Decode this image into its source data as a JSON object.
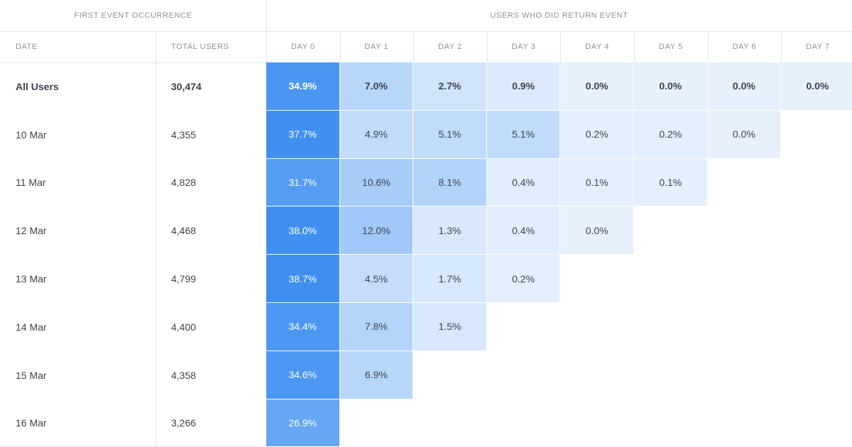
{
  "header": {
    "first_event": "FIRST EVENT OCCURRENCE",
    "return_event": "USERS WHO DID RETURN EVENT",
    "date_col": "DATE",
    "total_col": "TOTAL USERS"
  },
  "colors": {
    "day0_strong": "#3d8ef0",
    "light_base": "#e6f1fd",
    "text_dark": "#3d4150",
    "header_text": "#8a8f9c",
    "grid": "#e4e6ea"
  },
  "chart_data": {
    "type": "heatmap",
    "title": "",
    "columns": [
      "DAY 0",
      "DAY 1",
      "DAY 2",
      "DAY 3",
      "DAY 4",
      "DAY 5",
      "DAY 6",
      "DAY 7"
    ],
    "rows": [
      {
        "date": "All Users",
        "total": "30,474",
        "summary": true,
        "values": [
          "34.9%",
          "7.0%",
          "2.7%",
          "0.9%",
          "0.0%",
          "0.0%",
          "0.0%",
          "0.0%"
        ]
      },
      {
        "date": "10 Mar",
        "total": "4,355",
        "values": [
          "37.7%",
          "4.9%",
          "5.1%",
          "5.1%",
          "0.2%",
          "0.2%",
          "0.0%"
        ]
      },
      {
        "date": "11 Mar",
        "total": "4,828",
        "values": [
          "31.7%",
          "10.6%",
          "8.1%",
          "0.4%",
          "0.1%",
          "0.1%"
        ]
      },
      {
        "date": "12 Mar",
        "total": "4,468",
        "values": [
          "38.0%",
          "12.0%",
          "1.3%",
          "0.4%",
          "0.0%"
        ]
      },
      {
        "date": "13 Mar",
        "total": "4,799",
        "values": [
          "38.7%",
          "4.5%",
          "1.7%",
          "0.2%"
        ]
      },
      {
        "date": "14 Mar",
        "total": "4,400",
        "values": [
          "34.4%",
          "7.8%",
          "1.5%"
        ]
      },
      {
        "date": "15 Mar",
        "total": "4,358",
        "values": [
          "34.6%",
          "6.9%"
        ]
      },
      {
        "date": "16 Mar",
        "total": "3,266",
        "values": [
          "26.9%"
        ]
      }
    ]
  }
}
